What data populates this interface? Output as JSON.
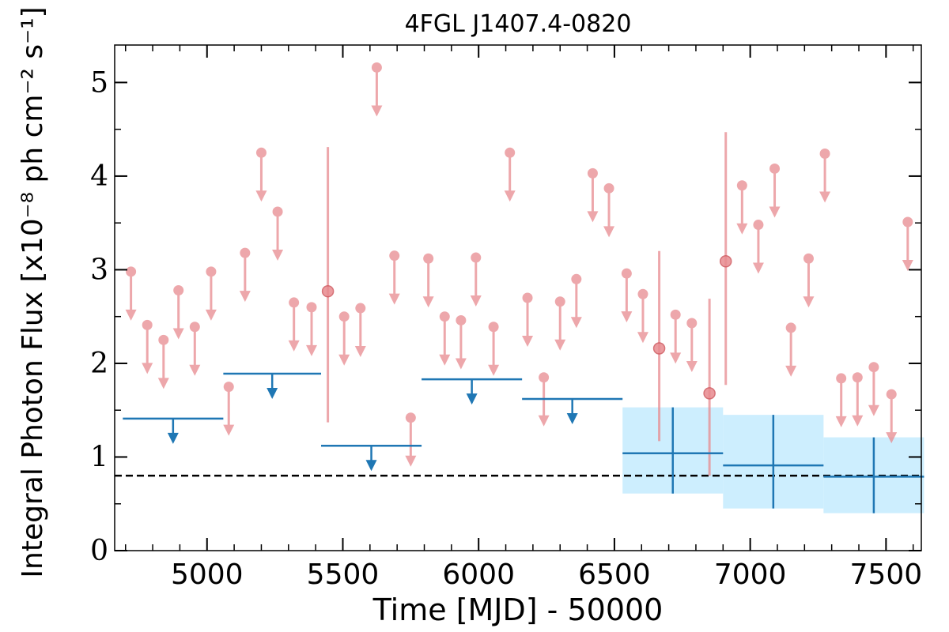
{
  "chart_data": {
    "type": "scatter",
    "title": "4FGL J1407.4-0820",
    "xlabel": "Time [MJD] - 50000",
    "ylabel": "Integral Photon Flux [x10⁻⁸ ph cm⁻² s⁻¹]",
    "xlim": [
      4660,
      7630
    ],
    "ylim": [
      0,
      5.4
    ],
    "xticks": [
      5000,
      5500,
      6000,
      6500,
      7000,
      7500
    ],
    "yticks": [
      0,
      1,
      2,
      3,
      4,
      5
    ],
    "xtick_labels": [
      "5000",
      "5500",
      "6000",
      "6500",
      "7000",
      "7500"
    ],
    "ytick_labels": [
      "0",
      "1",
      "2",
      "3",
      "4",
      "5"
    ],
    "reference_line": {
      "y": 0.8,
      "style": "dashed",
      "color": "#000000"
    },
    "colors": {
      "short_bins": "#e88a8f",
      "long_bins": "#1f77b4",
      "long_bins_band": "#cdeefe"
    },
    "short_bin_upper_limits": [
      [
        4720,
        2.98
      ],
      [
        4780,
        2.41
      ],
      [
        4840,
        2.25
      ],
      [
        4895,
        2.78
      ],
      [
        4955,
        2.39
      ],
      [
        5015,
        2.98
      ],
      [
        5080,
        1.75
      ],
      [
        5140,
        3.18
      ],
      [
        5200,
        4.25
      ],
      [
        5260,
        3.62
      ],
      [
        5320,
        2.65
      ],
      [
        5385,
        2.6
      ],
      [
        5505,
        2.5
      ],
      [
        5565,
        2.59
      ],
      [
        5625,
        5.16
      ],
      [
        5690,
        3.15
      ],
      [
        5750,
        1.42
      ],
      [
        5815,
        3.12
      ],
      [
        5875,
        2.5
      ],
      [
        5935,
        2.46
      ],
      [
        5990,
        3.13
      ],
      [
        6055,
        2.39
      ],
      [
        6115,
        4.25
      ],
      [
        6180,
        2.7
      ],
      [
        6240,
        1.85
      ],
      [
        6300,
        2.66
      ],
      [
        6360,
        2.9
      ],
      [
        6420,
        4.03
      ],
      [
        6480,
        3.87
      ],
      [
        6545,
        2.96
      ],
      [
        6605,
        2.74
      ],
      [
        6725,
        2.52
      ],
      [
        6785,
        2.43
      ],
      [
        6970,
        3.9
      ],
      [
        7030,
        3.48
      ],
      [
        7090,
        4.08
      ],
      [
        7150,
        2.38
      ],
      [
        7215,
        3.12
      ],
      [
        7275,
        4.24
      ],
      [
        7335,
        1.84
      ],
      [
        7395,
        1.85
      ],
      [
        7455,
        1.96
      ],
      [
        7520,
        1.67
      ],
      [
        7580,
        3.51
      ]
    ],
    "short_bin_detections": [
      {
        "x": 5445,
        "y": 2.77,
        "ylow": 1.37,
        "yhigh": 4.31
      },
      {
        "x": 6665,
        "y": 2.16,
        "ylow": 1.17,
        "yhigh": 3.2
      },
      {
        "x": 6850,
        "y": 1.68,
        "ylow": 0.8,
        "yhigh": 2.69
      },
      {
        "x": 6910,
        "y": 3.09,
        "ylow": 1.77,
        "yhigh": 4.47
      }
    ],
    "long_bin_upper_limits": [
      {
        "x0": 4690,
        "x1": 5060,
        "y": 1.41
      },
      {
        "x0": 5060,
        "x1": 5420,
        "y": 1.89
      },
      {
        "x0": 5420,
        "x1": 5790,
        "y": 1.12
      },
      {
        "x0": 5790,
        "x1": 6160,
        "y": 1.83
      },
      {
        "x0": 6160,
        "x1": 6530,
        "y": 1.62
      }
    ],
    "long_bin_detections": [
      {
        "x0": 6530,
        "x1": 6900,
        "xc": 6715,
        "y": 1.04,
        "ylow": 0.61,
        "yhigh": 1.53
      },
      {
        "x0": 6900,
        "x1": 7270,
        "xc": 7085,
        "y": 0.91,
        "ylow": 0.45,
        "yhigh": 1.45
      },
      {
        "x0": 7270,
        "x1": 7640,
        "xc": 7455,
        "y": 0.79,
        "ylow": 0.4,
        "yhigh": 1.21
      }
    ]
  }
}
